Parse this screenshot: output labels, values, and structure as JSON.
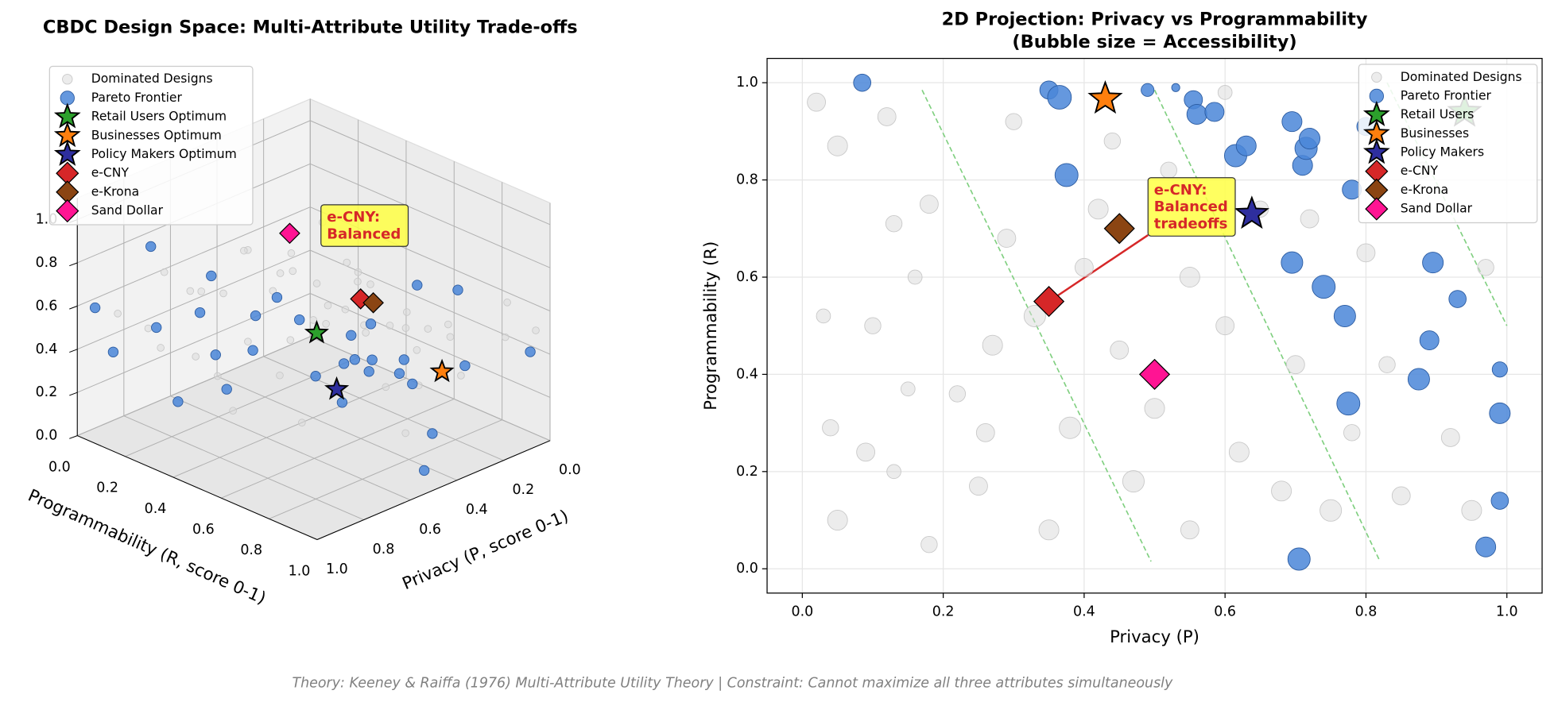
{
  "chart_data": [
    {
      "type": "scatter3d",
      "title": "CBDC Design Space: Multi-Attribute Utility Trade-offs",
      "xlabel": "Privacy (P, score 0-1)",
      "ylabel": "Programmability (R, score 0-1)",
      "xlim": [
        0,
        1
      ],
      "ylim": [
        0,
        1
      ],
      "zlim": [
        0,
        1.1
      ],
      "xticks": [
        {
          "value": 0,
          "label": "0.0"
        },
        {
          "value": 0.2,
          "label": "0.2"
        },
        {
          "value": 0.4,
          "label": "0.4"
        },
        {
          "value": 0.6,
          "label": "0.6"
        },
        {
          "value": 0.8,
          "label": "0.8"
        },
        {
          "value": 1,
          "label": "1.0"
        }
      ],
      "yticks": [
        {
          "value": 0,
          "label": "0.0"
        },
        {
          "value": 0.2,
          "label": "0.2"
        },
        {
          "value": 0.4,
          "label": "0.4"
        },
        {
          "value": 0.6,
          "label": "0.6"
        },
        {
          "value": 0.8,
          "label": "0.8"
        },
        {
          "value": 1,
          "label": "1.0"
        }
      ],
      "zticks": [
        {
          "value": 0,
          "label": "0.0"
        },
        {
          "value": 0.2,
          "label": "0.2"
        },
        {
          "value": 0.4,
          "label": "0.4"
        },
        {
          "value": 0.6,
          "label": "0.6"
        },
        {
          "value": 0.8,
          "label": "0.8"
        },
        {
          "value": 1,
          "label": "1.0"
        }
      ],
      "annotation": [
        "e-CNY:",
        "Balanced"
      ],
      "series": [
        {
          "name": "Dominated Designs",
          "color": "#d9d9d9",
          "marker": "circle",
          "x": [
            0.02,
            0.03,
            0.05,
            0.1,
            0.12,
            0.13,
            0.15,
            0.18,
            0.22,
            0.25,
            0.27,
            0.04,
            0.05,
            0.09,
            0.13,
            0.18,
            0.29,
            0.33,
            0.38,
            0.35,
            0.4,
            0.42,
            0.45,
            0.47,
            0.5,
            0.52,
            0.55,
            0.55,
            0.6,
            0.62,
            0.65,
            0.68,
            0.7,
            0.72,
            0.75,
            0.78,
            0.8,
            0.83,
            0.85,
            0.88,
            0.92,
            0.95,
            0.97,
            0.3,
            0.6,
            0.16,
            0.26,
            0.44
          ],
          "y": [
            0.96,
            0.52,
            0.87,
            0.5,
            0.93,
            0.71,
            0.37,
            0.75,
            0.36,
            0.17,
            0.46,
            0.29,
            0.1,
            0.24,
            0.2,
            0.05,
            0.68,
            0.52,
            0.29,
            0.08,
            0.62,
            0.74,
            0.45,
            0.18,
            0.33,
            0.82,
            0.6,
            0.08,
            0.5,
            0.24,
            0.74,
            0.16,
            0.42,
            0.72,
            0.12,
            0.28,
            0.65,
            0.42,
            0.15,
            0.82,
            0.27,
            0.12,
            0.62,
            0.92,
            0.98,
            0.6,
            0.28,
            0.88
          ],
          "z": [
            0.5,
            0.3,
            0.6,
            0.4,
            0.5,
            0.4,
            0.3,
            0.5,
            0.4,
            0.5,
            0.6,
            0.4,
            0.6,
            0.5,
            0.3,
            0.4,
            0.5,
            0.7,
            0.7,
            0.6,
            0.5,
            0.6,
            0.5,
            0.7,
            0.6,
            0.4,
            0.6,
            0.5,
            0.5,
            0.6,
            0.4,
            0.6,
            0.5,
            0.5,
            0.7,
            0.4,
            0.5,
            0.4,
            0.5,
            0.4,
            0.5,
            0.6,
            0.4,
            0.4,
            0.3,
            0.3,
            0.5,
            0.4
          ]
        },
        {
          "name": "Pareto Frontier",
          "color": "#4a86d8",
          "marker": "circle",
          "x": [
            0.085,
            0.35,
            0.365,
            0.375,
            0.49,
            0.53,
            0.555,
            0.56,
            0.585,
            0.615,
            0.63,
            0.695,
            0.71,
            0.715,
            0.72,
            0.8,
            0.78,
            0.695,
            0.74,
            0.77,
            0.775,
            0.705,
            0.875,
            0.895,
            0.89,
            0.93,
            0.99,
            0.99,
            0.99,
            0.97
          ],
          "y": [
            1.0,
            0.985,
            0.97,
            0.81,
            0.985,
            0.99,
            0.965,
            0.935,
            0.94,
            0.85,
            0.87,
            0.92,
            0.83,
            0.865,
            0.885,
            0.91,
            0.78,
            0.63,
            0.58,
            0.52,
            0.34,
            0.02,
            0.39,
            0.63,
            0.47,
            0.555,
            0.41,
            0.32,
            0.14,
            0.045
          ],
          "z": [
            0.45,
            0.5,
            0.85,
            0.8,
            0.25,
            0.1,
            0.5,
            0.6,
            0.55,
            0.75,
            0.6,
            0.6,
            0.6,
            0.75,
            0.65,
            0.5,
            0.55,
            0.7,
            0.8,
            0.7,
            0.8,
            0.75,
            0.7,
            0.65,
            0.55,
            0.45,
            0.35,
            0.65,
            0.45,
            0.6
          ]
        },
        {
          "name": "Retail Users Optimum",
          "color": "#2ca02c",
          "marker": "star",
          "x": [
            0.94
          ],
          "y": [
            0.94
          ],
          "z": [
            0.9
          ]
        },
        {
          "name": "Businesses Optimum",
          "color": "#ff7f0e",
          "marker": "star",
          "x": [
            0.43
          ],
          "y": [
            0.967
          ],
          "z": [
            0.5
          ]
        },
        {
          "name": "Policy Makers Optimum",
          "color": "#2e2e9e",
          "marker": "star",
          "x": [
            0.638
          ],
          "y": [
            0.73
          ],
          "z": [
            0.4
          ]
        },
        {
          "name": "e-CNY",
          "color": "#d62728",
          "marker": "diamond",
          "x": [
            0.35
          ],
          "y": [
            0.55
          ],
          "z": [
            0.6
          ]
        },
        {
          "name": "e-Krona",
          "color": "#8b4513",
          "marker": "diamond",
          "x": [
            0.45
          ],
          "y": [
            0.7
          ],
          "z": [
            0.7
          ]
        },
        {
          "name": "Sand Dollar",
          "color": "#ff1493",
          "marker": "diamond",
          "x": [
            0.5
          ],
          "y": [
            0.4
          ],
          "z": [
            0.9
          ]
        }
      ]
    },
    {
      "type": "scatter",
      "title": [
        "2D Projection: Privacy vs Programmability",
        "(Bubble size = Accessibility)"
      ],
      "xlabel": "Privacy (P)",
      "ylabel": "Programmability (R)",
      "xlim": [
        -0.05,
        1.05
      ],
      "ylim": [
        -0.05,
        1.05
      ],
      "grid": true,
      "xticks": [
        {
          "value": 0,
          "label": "0.0"
        },
        {
          "value": 0.2,
          "label": "0.2"
        },
        {
          "value": 0.4,
          "label": "0.4"
        },
        {
          "value": 0.6,
          "label": "0.6"
        },
        {
          "value": 0.8,
          "label": "0.8"
        },
        {
          "value": 1,
          "label": "1.0"
        }
      ],
      "yticks": [
        {
          "value": 0,
          "label": "0.0"
        },
        {
          "value": 0.2,
          "label": "0.2"
        },
        {
          "value": 0.4,
          "label": "0.4"
        },
        {
          "value": 0.6,
          "label": "0.6"
        },
        {
          "value": 0.8,
          "label": "0.8"
        },
        {
          "value": 1,
          "label": "1.0"
        }
      ],
      "annotation": [
        "e-CNY:",
        "Balanced",
        "tradeoffs"
      ],
      "reference_line_color": "#7fcf7f",
      "reference_lines": [
        {
          "x": [
            0.17,
            0.495
          ],
          "y": [
            0.985,
            0.015
          ]
        },
        {
          "x": [
            0.5,
            0.82
          ],
          "y": [
            0.985,
            0.015
          ]
        },
        {
          "x": [
            0.83,
            1.0
          ],
          "y": [
            1.0,
            0.5
          ]
        }
      ],
      "series": [
        {
          "name": "Dominated Designs",
          "color": "#d9d9d9",
          "marker": "circle",
          "x": [
            0.02,
            0.03,
            0.05,
            0.1,
            0.12,
            0.13,
            0.15,
            0.18,
            0.22,
            0.25,
            0.27,
            0.04,
            0.05,
            0.09,
            0.13,
            0.18,
            0.29,
            0.33,
            0.38,
            0.35,
            0.4,
            0.42,
            0.45,
            0.47,
            0.5,
            0.52,
            0.55,
            0.55,
            0.6,
            0.62,
            0.65,
            0.68,
            0.7,
            0.72,
            0.75,
            0.78,
            0.8,
            0.83,
            0.85,
            0.88,
            0.92,
            0.95,
            0.97,
            0.3,
            0.6,
            0.16,
            0.26,
            0.44
          ],
          "y": [
            0.96,
            0.52,
            0.87,
            0.5,
            0.93,
            0.71,
            0.37,
            0.75,
            0.36,
            0.17,
            0.46,
            0.29,
            0.1,
            0.24,
            0.2,
            0.05,
            0.68,
            0.52,
            0.29,
            0.08,
            0.62,
            0.74,
            0.45,
            0.18,
            0.33,
            0.82,
            0.6,
            0.08,
            0.5,
            0.24,
            0.74,
            0.16,
            0.42,
            0.72,
            0.12,
            0.28,
            0.65,
            0.42,
            0.15,
            0.82,
            0.27,
            0.12,
            0.62,
            0.92,
            0.98,
            0.6,
            0.28,
            0.88
          ],
          "sizes": [
            0.5,
            0.3,
            0.6,
            0.4,
            0.5,
            0.4,
            0.3,
            0.5,
            0.4,
            0.5,
            0.6,
            0.4,
            0.6,
            0.5,
            0.3,
            0.4,
            0.5,
            0.7,
            0.7,
            0.6,
            0.5,
            0.6,
            0.5,
            0.7,
            0.6,
            0.4,
            0.6,
            0.5,
            0.5,
            0.6,
            0.4,
            0.6,
            0.5,
            0.5,
            0.7,
            0.4,
            0.5,
            0.4,
            0.5,
            0.4,
            0.5,
            0.6,
            0.4,
            0.4,
            0.3,
            0.3,
            0.5,
            0.4
          ]
        },
        {
          "name": "Pareto Frontier",
          "color": "#4a86d8",
          "marker": "circle",
          "x": [
            0.085,
            0.35,
            0.365,
            0.375,
            0.49,
            0.53,
            0.555,
            0.56,
            0.585,
            0.615,
            0.63,
            0.695,
            0.71,
            0.715,
            0.72,
            0.8,
            0.78,
            0.695,
            0.74,
            0.77,
            0.775,
            0.705,
            0.875,
            0.895,
            0.89,
            0.93,
            0.99,
            0.99,
            0.99,
            0.97
          ],
          "y": [
            1.0,
            0.985,
            0.97,
            0.81,
            0.985,
            0.99,
            0.965,
            0.935,
            0.94,
            0.85,
            0.87,
            0.92,
            0.83,
            0.865,
            0.885,
            0.91,
            0.78,
            0.63,
            0.58,
            0.52,
            0.34,
            0.02,
            0.39,
            0.63,
            0.47,
            0.555,
            0.41,
            0.32,
            0.14,
            0.045
          ],
          "sizes": [
            0.45,
            0.5,
            0.85,
            0.8,
            0.25,
            0.1,
            0.5,
            0.6,
            0.55,
            0.75,
            0.6,
            0.6,
            0.6,
            0.75,
            0.65,
            0.5,
            0.55,
            0.7,
            0.8,
            0.7,
            0.8,
            0.75,
            0.7,
            0.65,
            0.55,
            0.45,
            0.35,
            0.65,
            0.45,
            0.6
          ]
        },
        {
          "name": "Retail Users",
          "color": "#2ca02c",
          "marker": "star",
          "x": [
            0.94
          ],
          "y": [
            0.94
          ]
        },
        {
          "name": "Businesses",
          "color": "#ff7f0e",
          "marker": "star",
          "x": [
            0.43
          ],
          "y": [
            0.967
          ]
        },
        {
          "name": "Policy Makers",
          "color": "#2e2e9e",
          "marker": "star",
          "x": [
            0.638
          ],
          "y": [
            0.73
          ]
        },
        {
          "name": "e-CNY",
          "color": "#d62728",
          "marker": "diamond",
          "x": [
            0.35
          ],
          "y": [
            0.55
          ]
        },
        {
          "name": "e-Krona",
          "color": "#8b4513",
          "marker": "diamond",
          "x": [
            0.45
          ],
          "y": [
            0.7
          ]
        },
        {
          "name": "Sand Dollar",
          "color": "#ff1493",
          "marker": "diamond",
          "x": [
            0.5
          ],
          "y": [
            0.4
          ]
        }
      ]
    }
  ],
  "footer": "Theory: Keeney & Raiffa (1976) Multi-Attribute Utility Theory | Constraint: Cannot maximize all three attributes simultaneously"
}
